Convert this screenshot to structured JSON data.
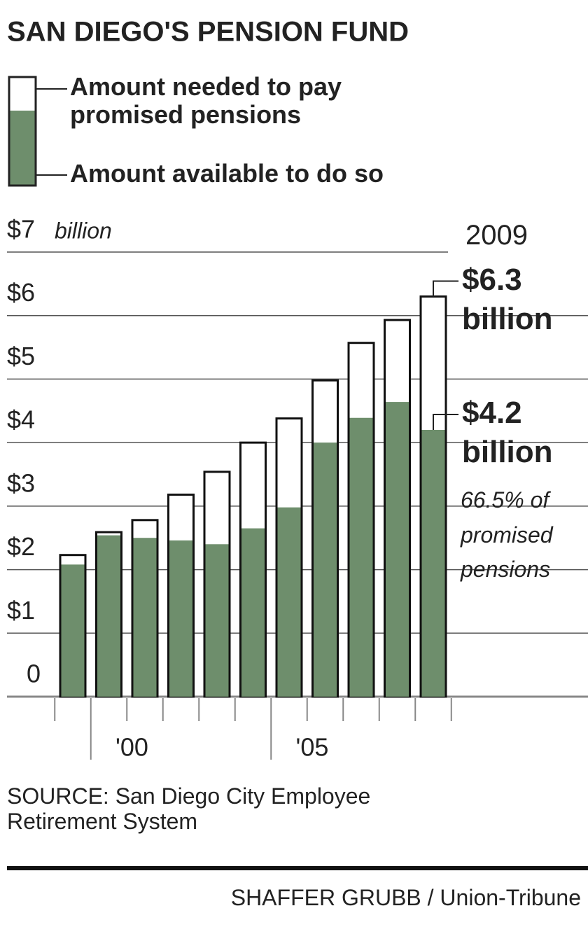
{
  "chart_data": {
    "type": "bar",
    "title": "SAN DIEGO'S PENSION FUND",
    "categories": [
      null,
      "'00",
      null,
      null,
      null,
      null,
      "'05",
      null,
      null,
      null,
      null
    ],
    "series": [
      {
        "name": "Amount needed to pay promised pensions",
        "color": "#ffffff",
        "values": [
          2.23,
          2.59,
          2.78,
          3.18,
          3.54,
          4.0,
          4.38,
          4.98,
          5.57,
          5.93,
          6.3
        ],
        "value_labels": [
          null,
          null,
          null,
          null,
          null,
          null,
          null,
          null,
          null,
          null,
          "$6.3 billion"
        ]
      },
      {
        "name": "Amount available to do so",
        "color": "#6e8e6c",
        "values": [
          2.08,
          2.54,
          2.5,
          2.46,
          2.4,
          2.65,
          2.98,
          4.0,
          4.39,
          4.64,
          4.2
        ],
        "value_labels": [
          null,
          null,
          null,
          null,
          null,
          null,
          null,
          null,
          null,
          null,
          "$4.2 billion"
        ]
      }
    ],
    "ylim": [
      0,
      7
    ],
    "yticks": [
      0,
      {
        "value": 1,
        "label": "$1"
      },
      {
        "value": 2,
        "label": "$2"
      },
      {
        "value": 3,
        "label": "$3"
      },
      {
        "value": 4,
        "label": "$4"
      },
      {
        "value": 5,
        "label": "$5"
      },
      {
        "value": 6,
        "label": "$6"
      },
      {
        "value": 7,
        "label": "$7"
      }
    ],
    "y_unit": "billion",
    "grid": true,
    "annotations": [
      "2009",
      "66.5% of promised pensions"
    ],
    "source": "SOURCE: San Diego City Employee Retirement System",
    "credit": "SHAFFER GRUBB / Union-Tribune"
  }
}
